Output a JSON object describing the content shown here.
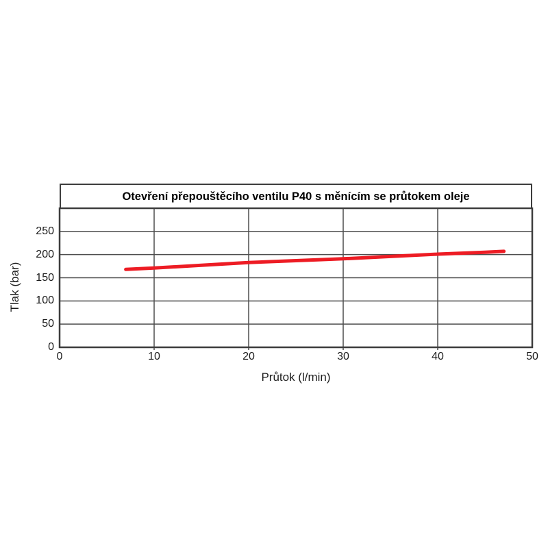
{
  "chart_data": {
    "type": "line",
    "title": "Otevření přepouštěcího ventilu P40 s měnícím se průtokem oleje",
    "xlabel": "Průtok (l/min)",
    "ylabel": "Tlak (bar)",
    "xlim": [
      0,
      50
    ],
    "ylim": [
      0,
      300
    ],
    "x_ticks": [
      0,
      10,
      20,
      30,
      40,
      50
    ],
    "y_ticks": [
      0,
      50,
      100,
      150,
      200,
      250
    ],
    "grid": true,
    "legend_position": "none",
    "series": [
      {
        "name": "opening-pressure-curve",
        "color": "#ed1c24",
        "x": [
          7,
          10,
          15,
          20,
          25,
          30,
          35,
          40,
          45,
          47
        ],
        "y": [
          168,
          171,
          177,
          183,
          187,
          191,
          196,
          201,
          205,
          207
        ]
      }
    ],
    "colors": {
      "grid": "#4d4d4d",
      "border": "#3d3d3d",
      "tick_text": "#1c1c1c",
      "title_text": "#000000",
      "background": "#ffffff"
    }
  }
}
